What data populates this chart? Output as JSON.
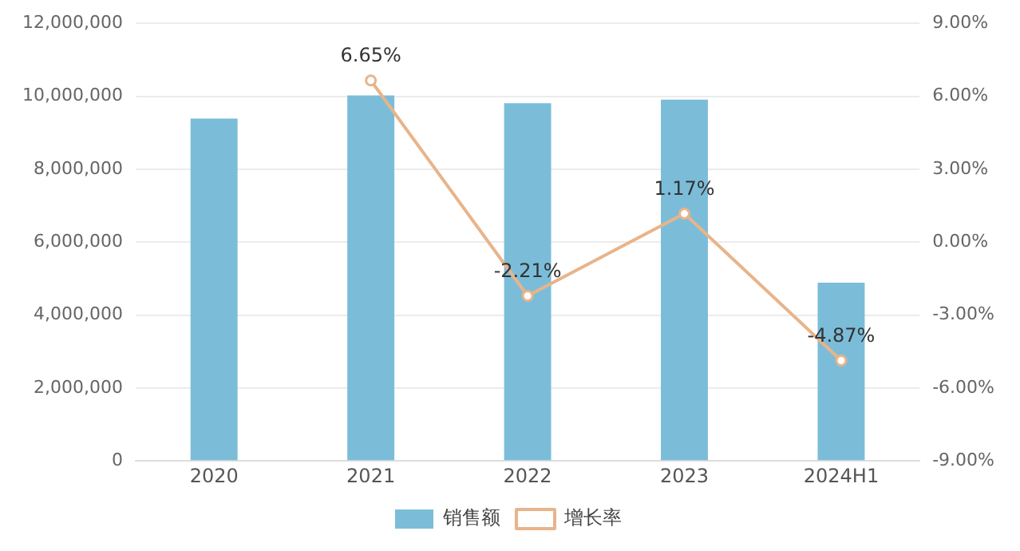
{
  "chart_data": {
    "type": "bar",
    "categories": [
      "2020",
      "2021",
      "2022",
      "2023",
      "2024H1"
    ],
    "series": [
      {
        "name": "销售额",
        "color": "#7bbdd9",
        "values": [
          9390000,
          10020000,
          9810000,
          9910000,
          4890000
        ]
      },
      {
        "name": "增长率",
        "type": "line",
        "axis": "y2",
        "color": "#e8b48a",
        "marker": "circle",
        "values": [
          null,
          6.65,
          -2.21,
          1.17,
          -4.87
        ],
        "value_labels": [
          null,
          "6.65%",
          "-2.21%",
          "1.17%",
          "-4.87%"
        ]
      }
    ],
    "ylim": [
      0,
      12000000
    ],
    "yticks": [
      {
        "value": 0,
        "label": "0"
      },
      {
        "value": 2000000,
        "label": "2,000,000"
      },
      {
        "value": 4000000,
        "label": "4,000,000"
      },
      {
        "value": 6000000,
        "label": "6,000,000"
      },
      {
        "value": 8000000,
        "label": "8,000,000"
      },
      {
        "value": 10000000,
        "label": "10,000,000"
      },
      {
        "value": 12000000,
        "label": "12,000,000"
      }
    ],
    "y2lim": [
      -9,
      9
    ],
    "y2ticks": [
      {
        "value": -9,
        "label": "-9.00%"
      },
      {
        "value": -6,
        "label": "-6.00%"
      },
      {
        "value": -3,
        "label": "-3.00%"
      },
      {
        "value": 0,
        "label": "0.00%"
      },
      {
        "value": 3,
        "label": "3.00%"
      },
      {
        "value": 6,
        "label": "6.00%"
      },
      {
        "value": 9,
        "label": "9.00%"
      }
    ],
    "grid": "y",
    "legend": "bottom"
  }
}
